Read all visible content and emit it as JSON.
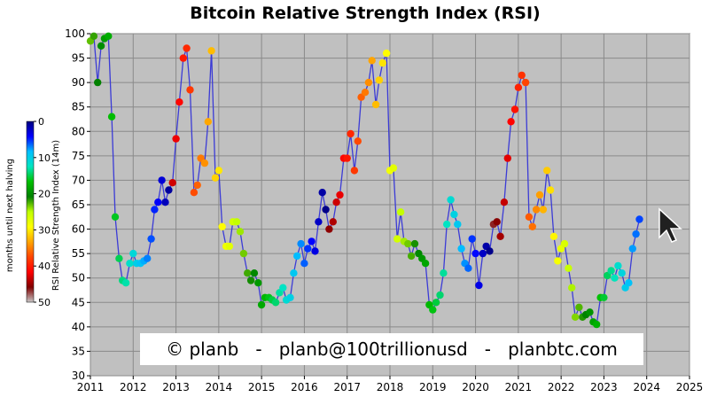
{
  "chart_data": {
    "type": "scatter",
    "title": "Bitcoin Relative Strength Index (RSI)",
    "xlabel": "",
    "ylabel": "RSI Relative Strength Index (14m)",
    "xlim": [
      2011,
      2025
    ],
    "ylim": [
      30,
      100
    ],
    "xticks": [
      "2011",
      "2012",
      "2013",
      "2014",
      "2015",
      "2016",
      "2017",
      "2018",
      "2019",
      "2020",
      "2021",
      "2022",
      "2023",
      "2024",
      "2025"
    ],
    "yticks": [
      "30",
      "35",
      "40",
      "45",
      "50",
      "55",
      "60",
      "65",
      "70",
      "75",
      "80",
      "85",
      "90",
      "95",
      "100"
    ],
    "grid": true,
    "line_color": "#3b3bd6",
    "plot_background": "#c0c0c0",
    "colorbar": {
      "label": "months until next halving",
      "ticks": [
        "0",
        "10",
        "20",
        "30",
        "40",
        "50"
      ],
      "range": [
        0,
        50
      ],
      "colors": [
        "#000080",
        "#0000ff",
        "#00bfff",
        "#00e5c0",
        "#00c000",
        "#008000",
        "#c0ff00",
        "#ffff00",
        "#ffa500",
        "#ff4500",
        "#ff0000",
        "#800000",
        "#c8c8c8"
      ]
    },
    "watermark": "© planb   -   planb@100trillionusd   -   planbtc.com",
    "points": [
      {
        "x": 2011.0,
        "y": 98.5
      },
      {
        "x": 2011.08,
        "y": 99.5
      },
      {
        "x": 2011.17,
        "y": 90.0
      },
      {
        "x": 2011.25,
        "y": 97.5
      },
      {
        "x": 2011.33,
        "y": 99.0
      },
      {
        "x": 2011.42,
        "y": 99.5
      },
      {
        "x": 2011.5,
        "y": 83.0
      },
      {
        "x": 2011.58,
        "y": 62.5
      },
      {
        "x": 2011.67,
        "y": 54.0
      },
      {
        "x": 2011.75,
        "y": 49.5
      },
      {
        "x": 2011.83,
        "y": 49.0
      },
      {
        "x": 2011.92,
        "y": 53.0
      },
      {
        "x": 2012.0,
        "y": 55.0
      },
      {
        "x": 2012.08,
        "y": 53.0
      },
      {
        "x": 2012.17,
        "y": 53.0
      },
      {
        "x": 2012.25,
        "y": 53.5
      },
      {
        "x": 2012.33,
        "y": 54.0
      },
      {
        "x": 2012.42,
        "y": 58.0
      },
      {
        "x": 2012.5,
        "y": 64.0
      },
      {
        "x": 2012.58,
        "y": 65.5
      },
      {
        "x": 2012.67,
        "y": 70.0
      },
      {
        "x": 2012.75,
        "y": 65.5
      },
      {
        "x": 2012.83,
        "y": 68.0
      },
      {
        "x": 2012.92,
        "y": 69.5
      },
      {
        "x": 2013.0,
        "y": 78.5
      },
      {
        "x": 2013.08,
        "y": 86.0
      },
      {
        "x": 2013.17,
        "y": 95.0
      },
      {
        "x": 2013.25,
        "y": 97.0
      },
      {
        "x": 2013.33,
        "y": 88.5
      },
      {
        "x": 2013.42,
        "y": 67.5
      },
      {
        "x": 2013.5,
        "y": 69.0
      },
      {
        "x": 2013.58,
        "y": 74.5
      },
      {
        "x": 2013.67,
        "y": 73.5
      },
      {
        "x": 2013.75,
        "y": 82.0
      },
      {
        "x": 2013.83,
        "y": 96.5
      },
      {
        "x": 2013.92,
        "y": 70.5
      },
      {
        "x": 2014.0,
        "y": 72.0
      },
      {
        "x": 2014.08,
        "y": 60.5
      },
      {
        "x": 2014.17,
        "y": 56.5
      },
      {
        "x": 2014.25,
        "y": 56.5
      },
      {
        "x": 2014.33,
        "y": 61.5
      },
      {
        "x": 2014.42,
        "y": 61.5
      },
      {
        "x": 2014.5,
        "y": 59.5
      },
      {
        "x": 2014.58,
        "y": 55.0
      },
      {
        "x": 2014.67,
        "y": 51.0
      },
      {
        "x": 2014.75,
        "y": 49.5
      },
      {
        "x": 2014.83,
        "y": 51.0
      },
      {
        "x": 2014.92,
        "y": 49.0
      },
      {
        "x": 2015.0,
        "y": 44.5
      },
      {
        "x": 2015.08,
        "y": 46.0
      },
      {
        "x": 2015.17,
        "y": 46.0
      },
      {
        "x": 2015.25,
        "y": 45.5
      },
      {
        "x": 2015.33,
        "y": 45.0
      },
      {
        "x": 2015.42,
        "y": 47.0
      },
      {
        "x": 2015.5,
        "y": 48.0
      },
      {
        "x": 2015.58,
        "y": 45.5
      },
      {
        "x": 2015.67,
        "y": 46.0
      },
      {
        "x": 2015.75,
        "y": 51.0
      },
      {
        "x": 2015.83,
        "y": 54.5
      },
      {
        "x": 2015.92,
        "y": 57.0
      },
      {
        "x": 2016.0,
        "y": 53.0
      },
      {
        "x": 2016.08,
        "y": 56.0
      },
      {
        "x": 2016.17,
        "y": 57.5
      },
      {
        "x": 2016.25,
        "y": 55.5
      },
      {
        "x": 2016.33,
        "y": 61.5
      },
      {
        "x": 2016.42,
        "y": 67.5
      },
      {
        "x": 2016.5,
        "y": 64.0
      },
      {
        "x": 2016.58,
        "y": 60.0
      },
      {
        "x": 2016.67,
        "y": 61.5
      },
      {
        "x": 2016.75,
        "y": 65.5
      },
      {
        "x": 2016.83,
        "y": 67.0
      },
      {
        "x": 2016.92,
        "y": 74.5
      },
      {
        "x": 2017.0,
        "y": 74.5
      },
      {
        "x": 2017.08,
        "y": 79.5
      },
      {
        "x": 2017.17,
        "y": 72.0
      },
      {
        "x": 2017.25,
        "y": 78.0
      },
      {
        "x": 2017.33,
        "y": 87.0
      },
      {
        "x": 2017.42,
        "y": 88.0
      },
      {
        "x": 2017.5,
        "y": 90.0
      },
      {
        "x": 2017.58,
        "y": 94.5
      },
      {
        "x": 2017.67,
        "y": 85.5
      },
      {
        "x": 2017.75,
        "y": 90.5
      },
      {
        "x": 2017.83,
        "y": 94.0
      },
      {
        "x": 2017.92,
        "y": 96.0
      },
      {
        "x": 2018.0,
        "y": 72.0
      },
      {
        "x": 2018.08,
        "y": 72.5
      },
      {
        "x": 2018.17,
        "y": 58.0
      },
      {
        "x": 2018.25,
        "y": 63.5
      },
      {
        "x": 2018.33,
        "y": 57.5
      },
      {
        "x": 2018.42,
        "y": 57.0
      },
      {
        "x": 2018.5,
        "y": 54.5
      },
      {
        "x": 2018.58,
        "y": 57.0
      },
      {
        "x": 2018.67,
        "y": 55.0
      },
      {
        "x": 2018.75,
        "y": 54.0
      },
      {
        "x": 2018.83,
        "y": 53.0
      },
      {
        "x": 2018.92,
        "y": 44.5
      },
      {
        "x": 2019.0,
        "y": 43.5
      },
      {
        "x": 2019.08,
        "y": 45.0
      },
      {
        "x": 2019.17,
        "y": 46.5
      },
      {
        "x": 2019.25,
        "y": 51.0
      },
      {
        "x": 2019.33,
        "y": 61.0
      },
      {
        "x": 2019.42,
        "y": 66.0
      },
      {
        "x": 2019.5,
        "y": 63.0
      },
      {
        "x": 2019.58,
        "y": 61.0
      },
      {
        "x": 2019.67,
        "y": 56.0
      },
      {
        "x": 2019.75,
        "y": 53.0
      },
      {
        "x": 2019.83,
        "y": 52.0
      },
      {
        "x": 2019.92,
        "y": 58.0
      },
      {
        "x": 2020.0,
        "y": 55.0
      },
      {
        "x": 2020.08,
        "y": 48.5
      },
      {
        "x": 2020.17,
        "y": 55.0
      },
      {
        "x": 2020.25,
        "y": 56.5
      },
      {
        "x": 2020.33,
        "y": 55.5
      },
      {
        "x": 2020.42,
        "y": 61.0
      },
      {
        "x": 2020.5,
        "y": 61.5
      },
      {
        "x": 2020.58,
        "y": 58.5
      },
      {
        "x": 2020.67,
        "y": 65.5
      },
      {
        "x": 2020.75,
        "y": 74.5
      },
      {
        "x": 2020.83,
        "y": 82.0
      },
      {
        "x": 2020.92,
        "y": 84.5
      },
      {
        "x": 2021.0,
        "y": 89.0
      },
      {
        "x": 2021.08,
        "y": 91.5
      },
      {
        "x": 2021.17,
        "y": 90.0
      },
      {
        "x": 2021.25,
        "y": 62.5
      },
      {
        "x": 2021.33,
        "y": 60.5
      },
      {
        "x": 2021.42,
        "y": 64.0
      },
      {
        "x": 2021.5,
        "y": 67.0
      },
      {
        "x": 2021.58,
        "y": 64.0
      },
      {
        "x": 2021.67,
        "y": 72.0
      },
      {
        "x": 2021.75,
        "y": 68.0
      },
      {
        "x": 2021.83,
        "y": 58.5
      },
      {
        "x": 2021.92,
        "y": 53.5
      },
      {
        "x": 2022.0,
        "y": 56.0
      },
      {
        "x": 2022.08,
        "y": 57.0
      },
      {
        "x": 2022.17,
        "y": 52.0
      },
      {
        "x": 2022.25,
        "y": 48.0
      },
      {
        "x": 2022.33,
        "y": 42.0
      },
      {
        "x": 2022.42,
        "y": 44.0
      },
      {
        "x": 2022.5,
        "y": 42.0
      },
      {
        "x": 2022.58,
        "y": 42.5
      },
      {
        "x": 2022.67,
        "y": 43.0
      },
      {
        "x": 2022.75,
        "y": 41.0
      },
      {
        "x": 2022.83,
        "y": 40.5
      },
      {
        "x": 2022.92,
        "y": 46.0
      },
      {
        "x": 2023.0,
        "y": 46.0
      },
      {
        "x": 2023.08,
        "y": 50.5
      },
      {
        "x": 2023.17,
        "y": 51.5
      },
      {
        "x": 2023.25,
        "y": 50.0
      },
      {
        "x": 2023.33,
        "y": 52.5
      },
      {
        "x": 2023.42,
        "y": 51.0
      },
      {
        "x": 2023.5,
        "y": 48.0
      },
      {
        "x": 2023.58,
        "y": 49.0
      },
      {
        "x": 2023.67,
        "y": 56.0
      },
      {
        "x": 2023.75,
        "y": 59.0
      },
      {
        "x": 2023.83,
        "y": 62.0
      }
    ]
  }
}
